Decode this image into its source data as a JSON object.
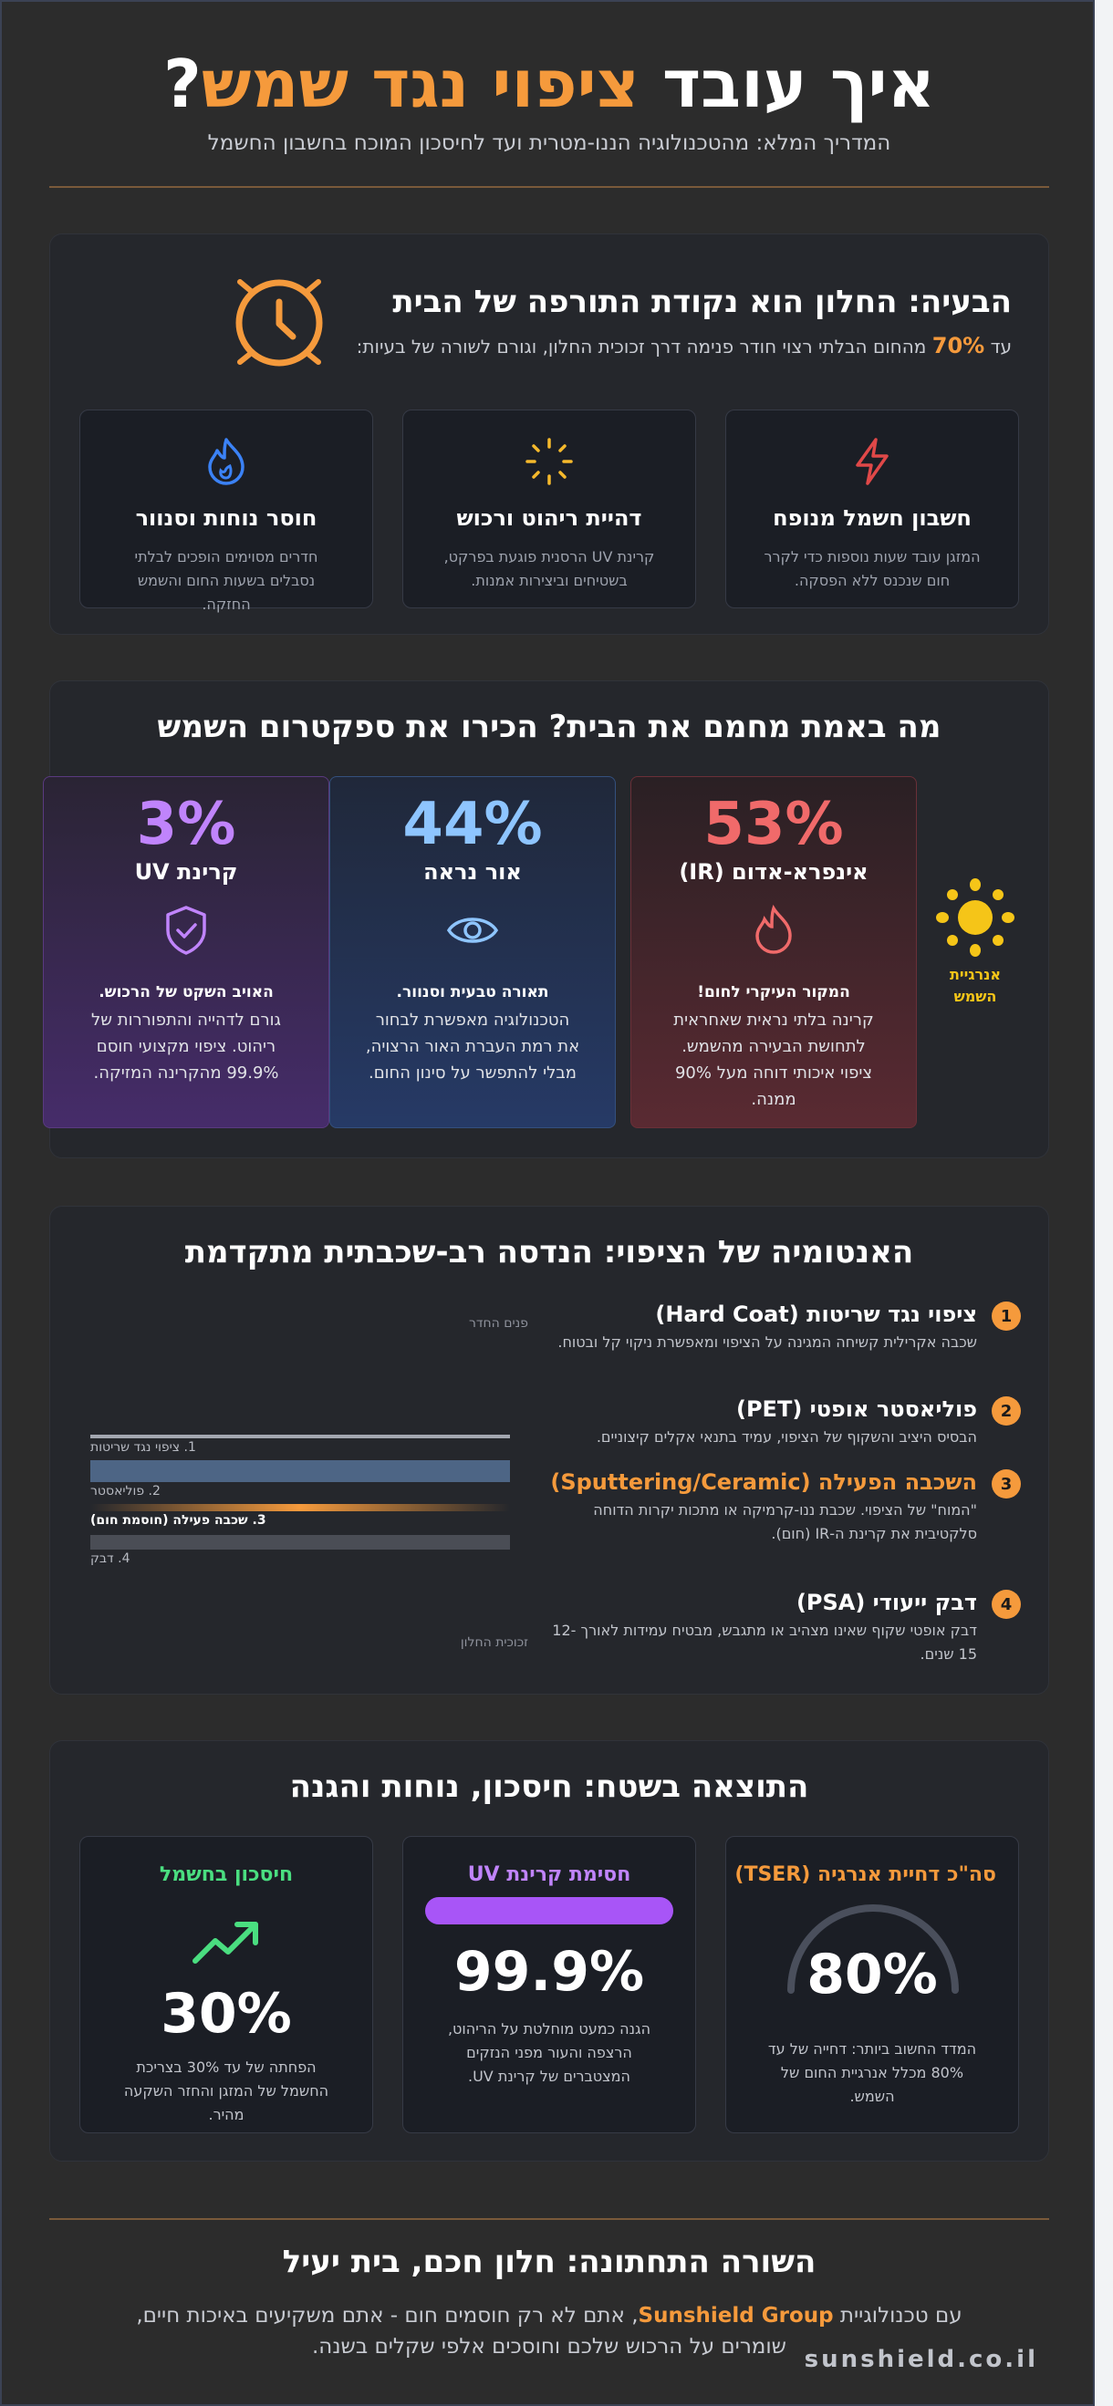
{
  "header": {
    "title_part1": "איך עובד",
    "title_accent": "ציפוי נגד שמש",
    "title_q": "?",
    "subtitle": "המדריך המלא: מהטכנולוגיה הננו-מטרית ועד לחיסכון המוכח בחשבון החשמל"
  },
  "problem": {
    "title": "הבעיה: החלון הוא נקודת התורפה של הבית",
    "desc_prefix": "עד",
    "desc_pct": "70%",
    "desc_rest": "מהחום הבלתי רצוי חודר פנימה דרך זכוכית החלון, וגורם לשורה של בעיות:",
    "items": [
      {
        "title": "חשבון חשמל מנופח",
        "desc": "המזגן עובד שעות נוספות כדי לקרר חום שנכנס ללא הפסקה."
      },
      {
        "title": "דהיית ריהוט ורכוש",
        "desc": "קרינת UV הרסנית פוגעת בפרקט, בשטיחים וביצירות אמנות."
      },
      {
        "title": "חוסר נוחות וסנוור",
        "desc": "חדרים מסוימים הופכים לבלתי נסבלים בשעות החום והשמש החזקה."
      }
    ]
  },
  "spectrum": {
    "title": "מה באמת מחמם את הבית? הכירו את ספקטרום השמש",
    "sun_label": "אנרגיית השמש",
    "items": [
      {
        "pct": "53%",
        "name": "אינפרא-אדום (IR)",
        "lead": "המקור העיקרי לחום!",
        "desc": "קרינה בלתי נראית שאחראית לתחושת הבעירה מהשמש. ציפוי איכותי דוחה מעל 90% ממנה.",
        "color": "#f06a6a"
      },
      {
        "pct": "44%",
        "name": "אור נראה",
        "lead": "תאורה טבעית וסנוור.",
        "desc": "הטכנולוגיה מאפשרת לבחור את רמת העברת האור הרצויה, מבלי להתפשר על סינון החום.",
        "color": "#8ec5ff"
      },
      {
        "pct": "3%",
        "name": "קרינת UV",
        "lead": "האויב השקט של הרכוש.",
        "desc": "גורם לדהייה והתפוררות של ריהוט. ציפוי מקצועי חוסם 99.9% מהקרינה המזיקה.",
        "color": "#c084fc"
      }
    ]
  },
  "anatomy": {
    "title": "האנטומיה של הציפוי: הנדסה רב-שכבתית מתקדמת",
    "layers": [
      {
        "num": "1",
        "title": "ציפוי נגד שריטות (Hard Coat)",
        "desc": "שכבה אקרילית קשיחה המגינה על הציפוי ומאפשרת ניקוי קל ובטוח."
      },
      {
        "num": "2",
        "title": "פוליאסטר אופטי (PET)",
        "desc": "הבסיס היציב והשקוף של הציפוי, עמיד בתנאי אקלים קיצוניים."
      },
      {
        "num": "3",
        "title": "השכבה הפעילה (Sputtering/Ceramic)",
        "desc": "\"המוח\" של הציפוי. שכבת ננו-קרמיקה או מתכות יקרות הדוחה סלקטיבית את קרינת ה-IR (חום)."
      },
      {
        "num": "4",
        "title": "דבק ייעודי (PSA)",
        "desc": "דבק אופטי שקוף שאינו מצהיב או מתגבש, מבטיח עמידות לאורך 12-15 שנים."
      }
    ],
    "diagram": {
      "room_side": "פנים החדר",
      "glass_side": "זכוכית החלון",
      "labels": [
        "1. ציפוי נגד שריטות",
        "2. פוליאסטר",
        "3. שכבה פעילה (חוסמת חום)",
        "4. דבק"
      ]
    }
  },
  "results": {
    "title": "התוצאה בשטח: חיסכון, נוחות והגנה",
    "items": [
      {
        "title": "סה\"כ דחיית אנרגיה (TSER)",
        "value": "80%",
        "desc": "המדד החשוב ביותר: דחייה של עד 80% מכלל אנרגיית החום של השמש.",
        "color": "#f59a3c",
        "gauge_fraction": 0.8
      },
      {
        "title": "חסימת קרינת UV",
        "value": "99.9%",
        "desc": "הגנה כמעט מוחלטת על הריהוט, הרצפה והעור מפני הנזקים המצטברים של קרינת UV.",
        "color": "#c084fc",
        "bar_fraction": 0.999
      },
      {
        "title": "חיסכון בחשמל",
        "value": "30%",
        "desc": "הפחתה של עד 30% בצריכת החשמל של המזגן והחזר השקעה מהיר.",
        "color": "#4ade80"
      }
    ]
  },
  "footer": {
    "title": "השורה התחתונה: חלון חכם, בית יעיל",
    "desc_prefix": "עם טכנולוגיית",
    "brand": "Sunshield Group",
    "desc_rest": ", אתם לא רק חוסמים חום - אתם משקיעים באיכות חיים, שומרים על הרכוש שלכם וחוסכים אלפי שקלים בשנה.",
    "domain": "sunshield.co.il"
  }
}
